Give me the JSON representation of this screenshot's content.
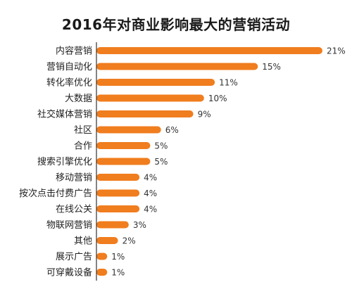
{
  "chart_data": {
    "type": "bar",
    "orientation": "horizontal",
    "title": "2016年对商业影响最大的营销活动",
    "categories": [
      "内容营销",
      "营销自动化",
      "转化率优化",
      "大数据",
      "社交媒体营销",
      "社区",
      "合作",
      "搜索引擎优化",
      "移动营销",
      "按次点击付费广告",
      "在线公关",
      "物联网营销",
      "其他",
      "展示广告",
      "可穿戴设备"
    ],
    "values": [
      21,
      15,
      11,
      10,
      9,
      6,
      5,
      5,
      4,
      4,
      4,
      3,
      2,
      1,
      1
    ],
    "value_labels": [
      "21%",
      "15%",
      "11%",
      "10%",
      "9%",
      "6%",
      "5%",
      "5%",
      "4%",
      "4%",
      "4%",
      "3%",
      "2%",
      "1%",
      "1%"
    ],
    "xlim": [
      0,
      21
    ],
    "grid": false,
    "legend": "none",
    "bar_color": "#F07D1E",
    "axis_color": "#333333"
  }
}
